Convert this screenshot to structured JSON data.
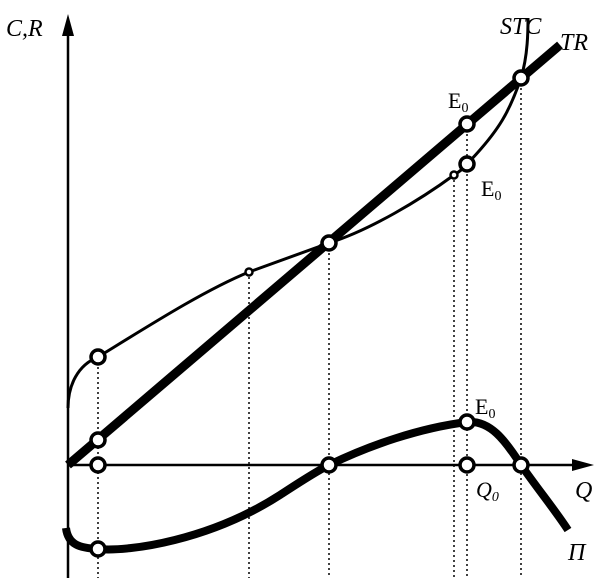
{
  "axes": {
    "y_label": "C,R",
    "x_label": "Q"
  },
  "curves": {
    "stc_label": "STC",
    "tr_label": "TR",
    "profit_label": "Π"
  },
  "points": {
    "e0_top_main": "E",
    "e0_top_sub": "0",
    "e0_mid_main": "E",
    "e0_mid_sub": "0",
    "e0_low_main": "E",
    "e0_low_sub": "0"
  },
  "ticks": {
    "q0_main": "Q",
    "q0_sub": "0"
  }
}
